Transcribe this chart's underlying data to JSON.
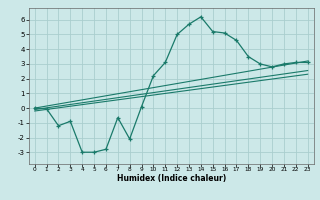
{
  "title": "",
  "xlabel": "Humidex (Indice chaleur)",
  "ylabel": "",
  "bg_color": "#cce8e8",
  "grid_color": "#aacece",
  "line_color": "#1a7a6a",
  "xlim": [
    -0.5,
    23.5
  ],
  "ylim": [
    -3.8,
    6.8
  ],
  "xticks": [
    0,
    1,
    2,
    3,
    4,
    5,
    6,
    7,
    8,
    9,
    10,
    11,
    12,
    13,
    14,
    15,
    16,
    17,
    18,
    19,
    20,
    21,
    22,
    23
  ],
  "yticks": [
    -3,
    -2,
    -1,
    0,
    1,
    2,
    3,
    4,
    5,
    6
  ],
  "curve_x": [
    0,
    1,
    2,
    3,
    4,
    5,
    6,
    7,
    8,
    9,
    10,
    11,
    12,
    13,
    14,
    15,
    16,
    17,
    18,
    19,
    20,
    21,
    22,
    23
  ],
  "curve_y": [
    0.0,
    -0.05,
    -1.2,
    -0.9,
    -3.0,
    -3.0,
    -2.8,
    -0.65,
    -2.1,
    0.1,
    2.2,
    3.1,
    5.0,
    5.7,
    6.2,
    5.2,
    5.1,
    4.6,
    3.5,
    3.0,
    2.8,
    3.0,
    3.1,
    3.1
  ],
  "line1_x": [
    0,
    23
  ],
  "line1_y": [
    0.0,
    3.2
  ],
  "line2_x": [
    0,
    23
  ],
  "line2_y": [
    -0.1,
    2.55
  ],
  "line3_x": [
    0,
    23
  ],
  "line3_y": [
    -0.2,
    2.3
  ]
}
